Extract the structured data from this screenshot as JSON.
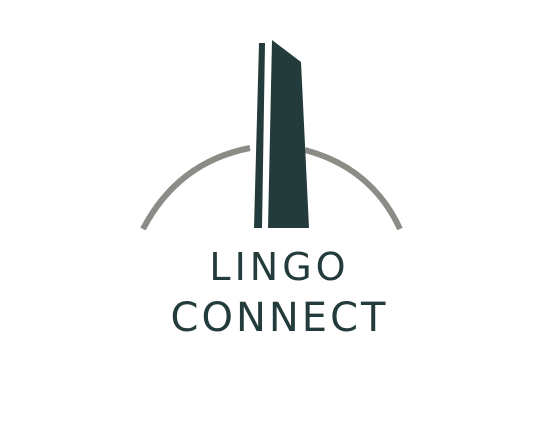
{
  "logo": {
    "line1": "LINGO",
    "line2": "CONNECT",
    "colors": {
      "tower": "#233b3b",
      "arc": "#8c8c87",
      "text": "#233b3b",
      "background": "#ffffff"
    }
  }
}
